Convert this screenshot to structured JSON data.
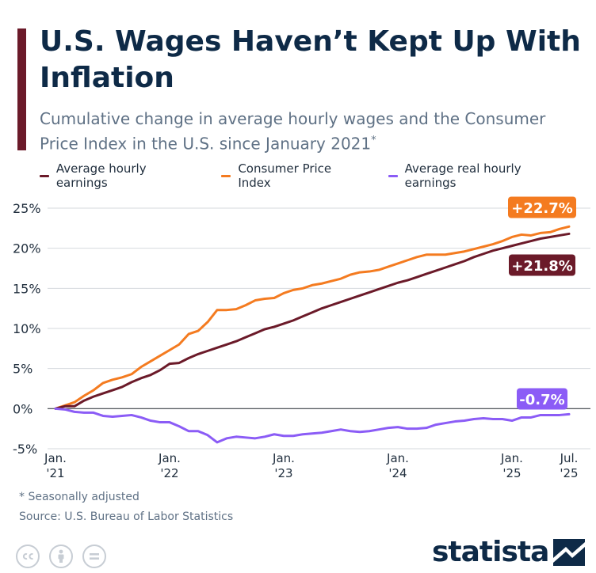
{
  "header": {
    "title": "U.S. Wages Haven’t Kept Up With Inflation",
    "subtitle": "Cumulative change in average hourly wages and the Consumer Price Index in the U.S. since January 2021",
    "subtitle_marker": "*"
  },
  "footer": {
    "footnote": "* Seasonally adjusted",
    "source": "Source: U.S. Bureau of Labor Statistics",
    "brand": "statista",
    "license_icons": [
      "cc-icon",
      "attribution-icon",
      "no-derivatives-icon"
    ]
  },
  "colors": {
    "earnings": "#6b1a29",
    "cpi": "#f47b20",
    "real": "#8b5cf6",
    "title": "#0e2a47",
    "grid": "#d6d9de"
  },
  "chart_data": {
    "type": "line",
    "ylim": [
      -5,
      25
    ],
    "yticks": [
      -5,
      0,
      5,
      10,
      15,
      20,
      25
    ],
    "ytick_labels": [
      "-5%",
      "0%",
      "5%",
      "10%",
      "15%",
      "20%",
      "25%"
    ],
    "x_start": "2021-01",
    "x_end": "2025-07",
    "x_ticks": [
      {
        "date": "2021-01",
        "label": "Jan.\n'21"
      },
      {
        "date": "2022-01",
        "label": "Jan.\n'22"
      },
      {
        "date": "2023-01",
        "label": "Jan.\n'23"
      },
      {
        "date": "2024-01",
        "label": "Jan.\n'24"
      },
      {
        "date": "2025-01",
        "label": "Jan.\n'25"
      },
      {
        "date": "2025-07",
        "label": "Jul.\n'25"
      }
    ],
    "series": [
      {
        "name": "Average hourly earnings",
        "color": "#6b1a29",
        "end_label": "+21.8%",
        "values": [
          [
            "2021-01",
            0.0
          ],
          [
            "2021-02",
            0.3
          ],
          [
            "2021-03",
            0.3
          ],
          [
            "2021-04",
            1.0
          ],
          [
            "2021-05",
            1.5
          ],
          [
            "2021-06",
            1.9
          ],
          [
            "2021-07",
            2.3
          ],
          [
            "2021-08",
            2.7
          ],
          [
            "2021-09",
            3.3
          ],
          [
            "2021-10",
            3.8
          ],
          [
            "2021-11",
            4.2
          ],
          [
            "2021-12",
            4.8
          ],
          [
            "2022-01",
            5.6
          ],
          [
            "2022-02",
            5.7
          ],
          [
            "2022-03",
            6.3
          ],
          [
            "2022-04",
            6.8
          ],
          [
            "2022-05",
            7.2
          ],
          [
            "2022-06",
            7.6
          ],
          [
            "2022-07",
            8.0
          ],
          [
            "2022-08",
            8.4
          ],
          [
            "2022-09",
            8.9
          ],
          [
            "2022-10",
            9.4
          ],
          [
            "2022-11",
            9.9
          ],
          [
            "2022-12",
            10.2
          ],
          [
            "2023-01",
            10.6
          ],
          [
            "2023-02",
            11.0
          ],
          [
            "2023-03",
            11.5
          ],
          [
            "2023-04",
            12.0
          ],
          [
            "2023-05",
            12.5
          ],
          [
            "2023-06",
            12.9
          ],
          [
            "2023-07",
            13.3
          ],
          [
            "2023-08",
            13.7
          ],
          [
            "2023-09",
            14.1
          ],
          [
            "2023-10",
            14.5
          ],
          [
            "2023-11",
            14.9
          ],
          [
            "2023-12",
            15.3
          ],
          [
            "2024-01",
            15.7
          ],
          [
            "2024-02",
            16.0
          ],
          [
            "2024-03",
            16.4
          ],
          [
            "2024-04",
            16.8
          ],
          [
            "2024-05",
            17.2
          ],
          [
            "2024-06",
            17.6
          ],
          [
            "2024-07",
            18.0
          ],
          [
            "2024-08",
            18.4
          ],
          [
            "2024-09",
            18.9
          ],
          [
            "2024-10",
            19.3
          ],
          [
            "2024-11",
            19.7
          ],
          [
            "2024-12",
            20.0
          ],
          [
            "2025-01",
            20.3
          ],
          [
            "2025-02",
            20.6
          ],
          [
            "2025-03",
            20.9
          ],
          [
            "2025-04",
            21.2
          ],
          [
            "2025-05",
            21.4
          ],
          [
            "2025-06",
            21.6
          ],
          [
            "2025-07",
            21.8
          ]
        ]
      },
      {
        "name": "Consumer Price Index",
        "color": "#f47b20",
        "end_label": "+22.7%",
        "values": [
          [
            "2021-01",
            0.0
          ],
          [
            "2021-02",
            0.4
          ],
          [
            "2021-03",
            0.8
          ],
          [
            "2021-04",
            1.6
          ],
          [
            "2021-05",
            2.3
          ],
          [
            "2021-06",
            3.2
          ],
          [
            "2021-07",
            3.6
          ],
          [
            "2021-08",
            3.9
          ],
          [
            "2021-09",
            4.3
          ],
          [
            "2021-10",
            5.2
          ],
          [
            "2021-11",
            5.9
          ],
          [
            "2021-12",
            6.6
          ],
          [
            "2022-01",
            7.3
          ],
          [
            "2022-02",
            8.0
          ],
          [
            "2022-03",
            9.3
          ],
          [
            "2022-04",
            9.7
          ],
          [
            "2022-05",
            10.8
          ],
          [
            "2022-06",
            12.3
          ],
          [
            "2022-07",
            12.3
          ],
          [
            "2022-08",
            12.4
          ],
          [
            "2022-09",
            12.9
          ],
          [
            "2022-10",
            13.5
          ],
          [
            "2022-11",
            13.7
          ],
          [
            "2022-12",
            13.8
          ],
          [
            "2023-01",
            14.4
          ],
          [
            "2023-02",
            14.8
          ],
          [
            "2023-03",
            15.0
          ],
          [
            "2023-04",
            15.4
          ],
          [
            "2023-05",
            15.6
          ],
          [
            "2023-06",
            15.9
          ],
          [
            "2023-07",
            16.2
          ],
          [
            "2023-08",
            16.7
          ],
          [
            "2023-09",
            17.0
          ],
          [
            "2023-10",
            17.1
          ],
          [
            "2023-11",
            17.3
          ],
          [
            "2023-12",
            17.7
          ],
          [
            "2024-01",
            18.1
          ],
          [
            "2024-02",
            18.5
          ],
          [
            "2024-03",
            18.9
          ],
          [
            "2024-04",
            19.2
          ],
          [
            "2024-05",
            19.2
          ],
          [
            "2024-06",
            19.2
          ],
          [
            "2024-07",
            19.4
          ],
          [
            "2024-08",
            19.6
          ],
          [
            "2024-09",
            19.9
          ],
          [
            "2024-10",
            20.2
          ],
          [
            "2024-11",
            20.5
          ],
          [
            "2024-12",
            20.9
          ],
          [
            "2025-01",
            21.4
          ],
          [
            "2025-02",
            21.7
          ],
          [
            "2025-03",
            21.6
          ],
          [
            "2025-04",
            21.9
          ],
          [
            "2025-05",
            22.0
          ],
          [
            "2025-06",
            22.4
          ],
          [
            "2025-07",
            22.7
          ]
        ]
      },
      {
        "name": "Average real hourly earnings",
        "color": "#8b5cf6",
        "end_label": "-0.7%",
        "values": [
          [
            "2021-01",
            0.0
          ],
          [
            "2021-02",
            -0.1
          ],
          [
            "2021-03",
            -0.4
          ],
          [
            "2021-04",
            -0.5
          ],
          [
            "2021-05",
            -0.5
          ],
          [
            "2021-06",
            -0.9
          ],
          [
            "2021-07",
            -1.0
          ],
          [
            "2021-08",
            -0.9
          ],
          [
            "2021-09",
            -0.8
          ],
          [
            "2021-10",
            -1.1
          ],
          [
            "2021-11",
            -1.5
          ],
          [
            "2021-12",
            -1.7
          ],
          [
            "2022-01",
            -1.7
          ],
          [
            "2022-02",
            -2.2
          ],
          [
            "2022-03",
            -2.8
          ],
          [
            "2022-04",
            -2.8
          ],
          [
            "2022-05",
            -3.3
          ],
          [
            "2022-06",
            -4.2
          ],
          [
            "2022-07",
            -3.7
          ],
          [
            "2022-08",
            -3.5
          ],
          [
            "2022-09",
            -3.6
          ],
          [
            "2022-10",
            -3.7
          ],
          [
            "2022-11",
            -3.5
          ],
          [
            "2022-12",
            -3.2
          ],
          [
            "2023-01",
            -3.4
          ],
          [
            "2023-02",
            -3.4
          ],
          [
            "2023-03",
            -3.2
          ],
          [
            "2023-04",
            -3.1
          ],
          [
            "2023-05",
            -3.0
          ],
          [
            "2023-06",
            -2.8
          ],
          [
            "2023-07",
            -2.6
          ],
          [
            "2023-08",
            -2.8
          ],
          [
            "2023-09",
            -2.9
          ],
          [
            "2023-10",
            -2.8
          ],
          [
            "2023-11",
            -2.6
          ],
          [
            "2023-12",
            -2.4
          ],
          [
            "2024-01",
            -2.3
          ],
          [
            "2024-02",
            -2.5
          ],
          [
            "2024-03",
            -2.5
          ],
          [
            "2024-04",
            -2.4
          ],
          [
            "2024-05",
            -2.0
          ],
          [
            "2024-06",
            -1.8
          ],
          [
            "2024-07",
            -1.6
          ],
          [
            "2024-08",
            -1.5
          ],
          [
            "2024-09",
            -1.3
          ],
          [
            "2024-10",
            -1.2
          ],
          [
            "2024-11",
            -1.3
          ],
          [
            "2024-12",
            -1.3
          ],
          [
            "2025-01",
            -1.5
          ],
          [
            "2025-02",
            -1.1
          ],
          [
            "2025-03",
            -1.1
          ],
          [
            "2025-04",
            -0.8
          ],
          [
            "2025-05",
            -0.8
          ],
          [
            "2025-06",
            -0.8
          ],
          [
            "2025-07",
            -0.7
          ]
        ]
      }
    ]
  }
}
